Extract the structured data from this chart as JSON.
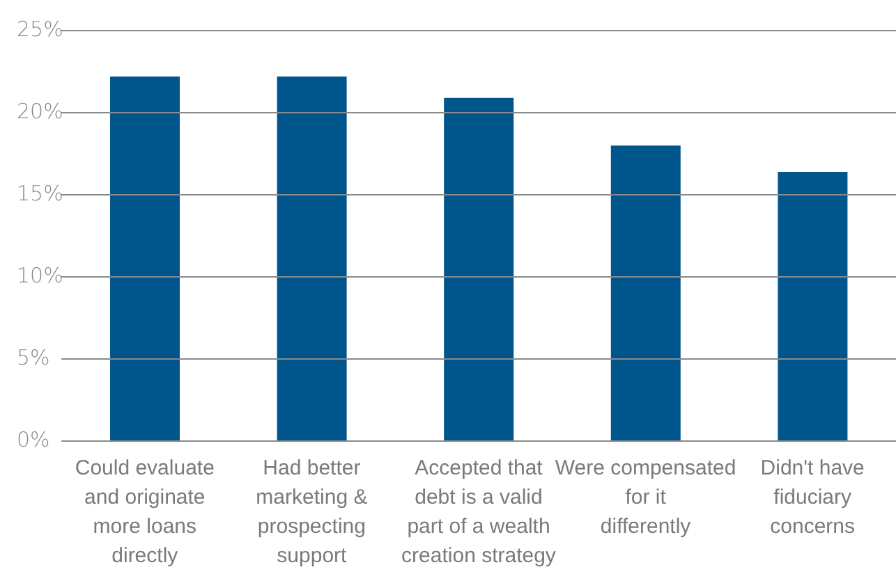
{
  "chart_data": {
    "type": "bar",
    "categories": [
      "Could evaluate and originate more loans directly",
      "Had better marketing & prospecting support",
      "Accepted that debt is a valid part of a wealth creation strategy",
      "Were compensated for it differently",
      "Didn't have fiduciary concerns"
    ],
    "values": [
      22.2,
      22.2,
      20.9,
      18.0,
      16.4
    ],
    "color": "#00558c",
    "ylim": [
      0,
      25
    ],
    "yticks": [
      {
        "value": 0,
        "label": "0%"
      },
      {
        "value": 5,
        "label": "5%"
      },
      {
        "value": 10,
        "label": "10%"
      },
      {
        "value": 15,
        "label": "15%"
      },
      {
        "value": 20,
        "label": "20%"
      },
      {
        "value": 25,
        "label": "25%"
      }
    ],
    "grid": "y"
  }
}
